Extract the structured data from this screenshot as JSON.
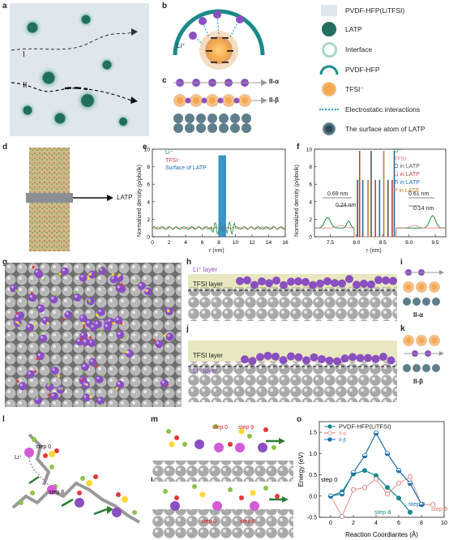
{
  "panels": {
    "a": "a",
    "b": "b",
    "c": "c",
    "d": "d",
    "e": "e",
    "f": "f",
    "g": "g",
    "h": "h",
    "i": "i",
    "j": "j",
    "k": "k",
    "l": "l",
    "m": "m",
    "n": "n",
    "o": "o"
  },
  "panel_a": {
    "path1": "I",
    "path2": "II"
  },
  "panel_b": {
    "li": "Li⁺"
  },
  "panel_c": {
    "row1": "II-α",
    "row2": "II-β"
  },
  "legend": {
    "items": [
      "PVDF-HFP(LiTFSI)",
      "LATP",
      "Interface",
      "PVDF-HFP",
      "TFSI⁻",
      "Electrostatic interactions",
      "The surface atom of LATP"
    ]
  },
  "panel_d": {
    "arrow_label": "LATP"
  },
  "panel_e": {
    "ylabel": "Normalized density (ρ/ρbulk)",
    "xlabel": "r (nm)",
    "legend": [
      "Li⁺",
      "TFSI⁻",
      "Surface of LATP"
    ],
    "yticks": [
      "0",
      "2",
      "4",
      "6",
      "8",
      "10"
    ],
    "xticks": [
      "0",
      "2",
      "4",
      "6",
      "8",
      "10",
      "12",
      "14",
      "16"
    ]
  },
  "panel_f": {
    "ylabel": "Normalized density (ρ/ρbulk)",
    "xlabel": "r (nm)",
    "legend": [
      "Li⁺",
      "TFSI⁻",
      "O in LATP",
      "Li in LATP",
      "Ti in LATP",
      "P in LATP"
    ],
    "annotations": [
      "0.69 nm",
      "0.24 nm",
      "0.61 nm",
      "0.14 nm"
    ],
    "yticks": [
      "0",
      "2",
      "4",
      "6",
      "8",
      "10"
    ],
    "xticks": [
      "7.5",
      "8.0",
      "8.5",
      "9.0",
      "9.5"
    ]
  },
  "panel_h": {
    "top": "Li⁺ layer",
    "bottom": "TFSI layer"
  },
  "panel_j": {
    "top": "TFSI layer",
    "bottom": "Li⁺ layer"
  },
  "panel_i": {
    "label": "II-α"
  },
  "panel_k": {
    "label": "II-β"
  },
  "panel_l": {
    "s0": "step 0",
    "s8": "step 8",
    "li": "Li⁺"
  },
  "panel_m": {
    "s0": "step 0",
    "s9": "step 9"
  },
  "panel_n": {
    "s0": "step 0",
    "s8": "step 8"
  },
  "chart_data": [
    {
      "type": "line",
      "panel": "o",
      "title": "",
      "xlabel": "Reaction Coordiantes (Å)",
      "ylabel": "Energy (eV)",
      "xlim": [
        -1,
        10
      ],
      "ylim": [
        -0.5,
        1.75
      ],
      "xticks": [
        0,
        2,
        4,
        6,
        8,
        10
      ],
      "yticks": [
        -0.5,
        0.0,
        0.5,
        1.0,
        1.5
      ],
      "legend_position": "top-left",
      "series": [
        {
          "name": "PVDF-HFP(LiTFSI)",
          "color": "#1a8a8a",
          "marker": "filled",
          "x": [
            0,
            1,
            2,
            3,
            4,
            5,
            6,
            7
          ],
          "y": [
            0.0,
            0.1,
            0.52,
            0.6,
            0.48,
            0.2,
            -0.05,
            -0.38
          ]
        },
        {
          "name": "II-α",
          "color": "#e07070",
          "marker": "open",
          "x": [
            0,
            1,
            2,
            3,
            4,
            5,
            6,
            7,
            8,
            9
          ],
          "y": [
            0.0,
            -0.48,
            0.15,
            0.2,
            0.4,
            0.05,
            0.3,
            0.45,
            -0.2,
            -0.2
          ]
        },
        {
          "name": "II-β",
          "color": "#1b6fb0",
          "marker": "half",
          "x": [
            0,
            1,
            2,
            3,
            4,
            5,
            6,
            7,
            8
          ],
          "y": [
            0.0,
            0.05,
            0.55,
            0.95,
            1.48,
            1.0,
            0.6,
            0.3,
            -0.2
          ]
        }
      ],
      "annotations": [
        "step 0",
        "step 8",
        "step 8",
        "step 9"
      ]
    }
  ]
}
